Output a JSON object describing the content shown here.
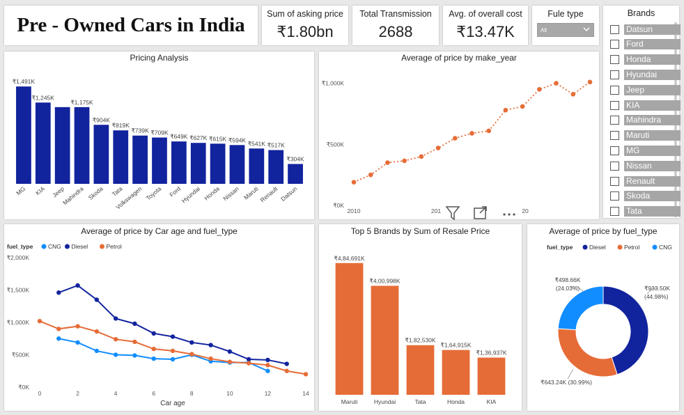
{
  "header": {
    "title": "Pre - Owned Cars in India"
  },
  "kpis": [
    {
      "label": "Sum of asking price",
      "value": "₹1.80bn"
    },
    {
      "label": "Total Transmission",
      "value": "2688"
    },
    {
      "label": "Avg. of overall cost",
      "value": "₹13.47K"
    }
  ],
  "fuel_slicer": {
    "label": "Fule type",
    "selected": "All"
  },
  "brands_slicer": {
    "label": "Brands",
    "items": [
      "Datsun",
      "Ford",
      "Honda",
      "Hyundai",
      "Jeep",
      "KIA",
      "Mahindra",
      "Maruti",
      "MG",
      "Nissan",
      "Renault",
      "Skoda",
      "Tata"
    ]
  },
  "colors": {
    "navy": "#12239e",
    "orange": "#e66c37",
    "blue": "#118dff"
  },
  "visual_toolbar": {
    "icons": [
      "filter-icon",
      "focus-mode-icon",
      "more-options-icon"
    ]
  },
  "chart_data": [
    {
      "type": "bar",
      "title": "Pricing Analysis",
      "categories": [
        "MG",
        "KIA",
        "Jeep",
        "Mahindra",
        "Skoda",
        "Tata",
        "Volkswagen",
        "Toyota",
        "Ford",
        "Hyundai",
        "Honda",
        "Nissan",
        "Maruti",
        "Renault",
        "Datsun"
      ],
      "values": [
        1491,
        1245,
        1175,
        1175,
        904,
        819,
        739,
        709,
        649,
        627,
        615,
        594,
        541,
        517,
        304
      ],
      "data_labels": [
        "₹1,491K",
        "₹1,245K",
        "",
        "₹1,175K",
        "₹904K",
        "₹819K",
        "₹739K",
        "₹709K",
        "₹649K",
        "₹627K",
        "₹615K",
        "₹594K",
        "₹541K",
        "₹517K",
        "₹304K"
      ],
      "color": "#12239e",
      "ylim": [
        0,
        1600
      ]
    },
    {
      "type": "line",
      "title": "Average of price by make_year",
      "x": [
        2010,
        2011,
        2012,
        2013,
        2014,
        2015,
        2016,
        2017,
        2018,
        2019,
        2020,
        2021,
        2022,
        2023,
        2024
      ],
      "values": [
        190,
        250,
        350,
        365,
        400,
        470,
        550,
        590,
        610,
        780,
        810,
        950,
        1000,
        910,
        1010
      ],
      "x_ticks": [
        "2010",
        "201",
        "20"
      ],
      "y_ticks": [
        "₹0K",
        "₹500K",
        "₹1,000K"
      ],
      "ylim": [
        0,
        1100
      ],
      "color": "#e66c37"
    },
    {
      "type": "line",
      "title": "Average of price by Car age and fuel_type",
      "legend_title": "fuel_type",
      "xlabel": "Car age",
      "x_ticks": [
        "0",
        "2",
        "4",
        "6",
        "8",
        "10",
        "12",
        "14"
      ],
      "y_ticks": [
        "₹0K",
        "₹500K",
        "₹1,000K",
        "₹1,500K",
        "₹2,000K"
      ],
      "xlim": [
        0,
        14
      ],
      "ylim": [
        0,
        2000
      ],
      "series": [
        {
          "name": "CNG",
          "color": "#118dff",
          "x": [
            1,
            2,
            3,
            4,
            5,
            6,
            7,
            8,
            9,
            10,
            11,
            12
          ],
          "values": [
            750,
            690,
            560,
            500,
            490,
            440,
            430,
            500,
            400,
            380,
            380,
            250
          ]
        },
        {
          "name": "Diesel",
          "color": "#12239e",
          "x": [
            1,
            2,
            3,
            4,
            5,
            6,
            7,
            8,
            9,
            10,
            11,
            12,
            13
          ],
          "values": [
            1460,
            1570,
            1350,
            1060,
            980,
            830,
            780,
            690,
            650,
            550,
            430,
            420,
            360
          ]
        },
        {
          "name": "Petrol",
          "color": "#e66c37",
          "x": [
            0,
            1,
            2,
            3,
            4,
            5,
            6,
            7,
            8,
            9,
            10,
            11,
            12,
            13,
            14
          ],
          "values": [
            1020,
            900,
            940,
            860,
            740,
            700,
            590,
            560,
            510,
            440,
            390,
            370,
            340,
            250,
            200
          ]
        }
      ]
    },
    {
      "type": "bar",
      "title": "Top 5 Brands by Sum of Resale Price",
      "categories": [
        "Maruti",
        "Hyundai",
        "Tata",
        "Honda",
        "KIA"
      ],
      "values": [
        484691,
        400998,
        182530,
        164915,
        136937
      ],
      "data_labels": [
        "₹4,84,691K",
        "₹4,00,998K",
        "₹1,82,530K",
        "₹1,64,915K",
        "₹1,36,937K"
      ],
      "color": "#e66c37",
      "ylim": [
        0,
        520000
      ]
    },
    {
      "type": "pie",
      "title": "Average of price by fuel_type",
      "legend_title": "fuel_type",
      "slices": [
        {
          "name": "Diesel",
          "value": 933.5,
          "label": "₹933.50K",
          "pct": "(44.98%)",
          "color": "#12239e"
        },
        {
          "name": "Petrol",
          "value": 643.24,
          "label": "₹643.24K (30.99%)",
          "pct": "",
          "color": "#e66c37"
        },
        {
          "name": "CNG",
          "value": 498.66,
          "label": "₹498.66K",
          "pct": "(24.03%)",
          "color": "#118dff"
        }
      ]
    }
  ]
}
